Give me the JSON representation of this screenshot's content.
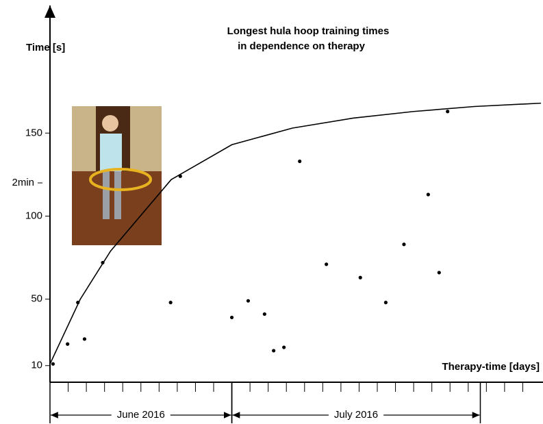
{
  "chart_data": {
    "type": "scatter",
    "title": [
      "Longest hula hoop training times",
      "in dependence on therapy"
    ],
    "y_label": "Time [s]",
    "x_label": "Therapy-time [days]",
    "xlim": [
      0,
      81
    ],
    "ylim": [
      0,
      226
    ],
    "xticks": [
      0,
      3,
      6,
      9,
      12,
      15,
      18,
      21,
      24,
      27,
      30,
      33,
      36,
      39,
      42,
      45,
      48,
      51,
      54,
      57,
      60,
      63,
      66,
      69,
      72,
      75,
      78
    ],
    "yticks": [
      10,
      50,
      100,
      {
        "value": 120,
        "label": "2min"
      },
      150
    ],
    "series": [
      {
        "type": "line",
        "color": "#000000",
        "x": [
          0,
          5,
          10,
          20,
          30,
          40,
          50,
          60,
          70,
          81
        ],
        "values": [
          11,
          50,
          79,
          122,
          143,
          153,
          159,
          163,
          166,
          168
        ]
      },
      {
        "type": "scatter",
        "color": "#000000",
        "x": [
          0.5,
          2.9,
          4.6,
          5.7,
          8.7,
          19.9,
          21.5,
          30,
          32.7,
          35.4,
          36.9,
          38.6,
          41.2,
          45.6,
          51.2,
          55.4,
          58.4,
          62.4,
          64.2,
          65.6
        ],
        "values": [
          11,
          23,
          48,
          26,
          72,
          48,
          124,
          39,
          49,
          41,
          19,
          21,
          133,
          71,
          63,
          48,
          83,
          113,
          66,
          163
        ]
      }
    ],
    "periods": [
      {
        "label": "June 2016",
        "range": [
          0,
          30
        ]
      },
      {
        "label": "July 2016",
        "range": [
          30,
          71
        ]
      }
    ]
  }
}
